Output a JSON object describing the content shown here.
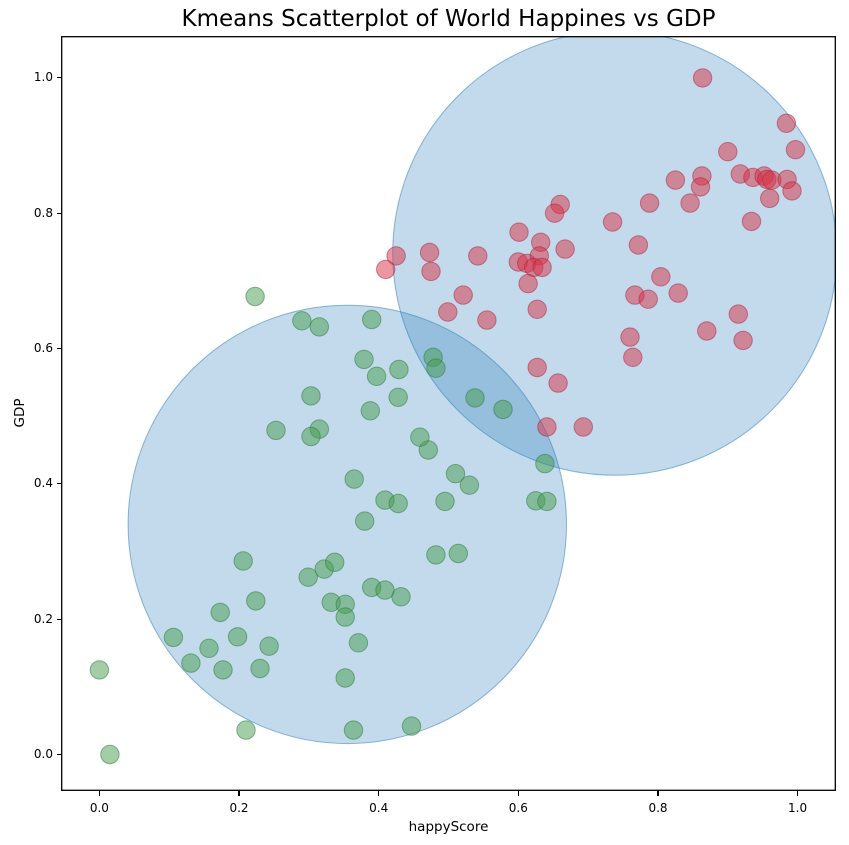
{
  "chart_data": {
    "type": "scatter",
    "title": "Kmeans Scatterplot of World Happines vs GDP",
    "xlabel": "happyScore",
    "ylabel": "GDP",
    "x_ticks": [
      "0.0",
      "0.2",
      "0.4",
      "0.6",
      "0.8",
      "1.0"
    ],
    "y_ticks": [
      "0.0",
      "0.2",
      "0.4",
      "0.6",
      "0.8",
      "1.0"
    ],
    "xlim": [
      -0.055,
      1.055
    ],
    "ylim": [
      -0.054,
      1.062
    ],
    "grid": false,
    "legend": "none",
    "colors": {
      "cluster_region_fill": "rgba(31,119,180,0.27)",
      "cluster_region_edge": "rgba(31,119,180,0.5)",
      "red_point_fill": "rgba(215,48,70,0.5)",
      "red_point_edge": "rgba(175,30,55,0.5)",
      "green_point_fill": "rgba(70,155,80,0.5)",
      "green_point_edge": "rgba(45,125,60,0.55)",
      "spine": "#000000"
    },
    "clusters": [
      {
        "name": "kmeans-region-high",
        "center": [
          0.738,
          0.741
        ],
        "radius": 0.318
      },
      {
        "name": "kmeans-region-low",
        "center": [
          0.355,
          0.34
        ],
        "radius": 0.314
      }
    ],
    "series": [
      {
        "name": "red-cluster",
        "points": [
          [
            0.864,
            1.0
          ],
          [
            0.984,
            0.933
          ],
          [
            0.997,
            0.894
          ],
          [
            0.9,
            0.891
          ],
          [
            0.918,
            0.858
          ],
          [
            0.936,
            0.853
          ],
          [
            0.952,
            0.855
          ],
          [
            0.956,
            0.85
          ],
          [
            0.963,
            0.849
          ],
          [
            0.985,
            0.85
          ],
          [
            0.992,
            0.833
          ],
          [
            0.96,
            0.822
          ],
          [
            0.863,
            0.855
          ],
          [
            0.861,
            0.839
          ],
          [
            0.846,
            0.815
          ],
          [
            0.825,
            0.849
          ],
          [
            0.788,
            0.815
          ],
          [
            0.934,
            0.788
          ],
          [
            0.735,
            0.787
          ],
          [
            0.772,
            0.753
          ],
          [
            0.66,
            0.813
          ],
          [
            0.652,
            0.8
          ],
          [
            0.601,
            0.772
          ],
          [
            0.632,
            0.757
          ],
          [
            0.542,
            0.737
          ],
          [
            0.667,
            0.747
          ],
          [
            0.63,
            0.737
          ],
          [
            0.6,
            0.728
          ],
          [
            0.612,
            0.726
          ],
          [
            0.622,
            0.72
          ],
          [
            0.634,
            0.72
          ],
          [
            0.473,
            0.742
          ],
          [
            0.425,
            0.737
          ],
          [
            0.41,
            0.717
          ],
          [
            0.475,
            0.714
          ],
          [
            0.614,
            0.696
          ],
          [
            0.804,
            0.706
          ],
          [
            0.767,
            0.679
          ],
          [
            0.786,
            0.673
          ],
          [
            0.829,
            0.682
          ],
          [
            0.521,
            0.679
          ],
          [
            0.499,
            0.654
          ],
          [
            0.555,
            0.642
          ],
          [
            0.627,
            0.658
          ],
          [
            0.915,
            0.651
          ],
          [
            0.87,
            0.626
          ],
          [
            0.922,
            0.612
          ],
          [
            0.76,
            0.617
          ],
          [
            0.764,
            0.587
          ],
          [
            0.627,
            0.572
          ],
          [
            0.657,
            0.549
          ],
          [
            0.641,
            0.484
          ],
          [
            0.693,
            0.484
          ]
        ]
      },
      {
        "name": "green-cluster",
        "points": [
          [
            0.015,
            0.0
          ],
          [
            0.0,
            0.125
          ],
          [
            0.21,
            0.036
          ],
          [
            0.364,
            0.036
          ],
          [
            0.447,
            0.042
          ],
          [
            0.352,
            0.113
          ],
          [
            0.177,
            0.125
          ],
          [
            0.23,
            0.127
          ],
          [
            0.131,
            0.135
          ],
          [
            0.157,
            0.157
          ],
          [
            0.243,
            0.16
          ],
          [
            0.371,
            0.165
          ],
          [
            0.106,
            0.173
          ],
          [
            0.198,
            0.174
          ],
          [
            0.173,
            0.21
          ],
          [
            0.224,
            0.227
          ],
          [
            0.332,
            0.225
          ],
          [
            0.352,
            0.222
          ],
          [
            0.352,
            0.203
          ],
          [
            0.39,
            0.247
          ],
          [
            0.409,
            0.243
          ],
          [
            0.432,
            0.233
          ],
          [
            0.299,
            0.262
          ],
          [
            0.322,
            0.274
          ],
          [
            0.337,
            0.284
          ],
          [
            0.206,
            0.286
          ],
          [
            0.482,
            0.295
          ],
          [
            0.514,
            0.297
          ],
          [
            0.38,
            0.345
          ],
          [
            0.409,
            0.376
          ],
          [
            0.428,
            0.371
          ],
          [
            0.365,
            0.407
          ],
          [
            0.495,
            0.374
          ],
          [
            0.625,
            0.375
          ],
          [
            0.641,
            0.374
          ],
          [
            0.638,
            0.43
          ],
          [
            0.51,
            0.415
          ],
          [
            0.53,
            0.398
          ],
          [
            0.471,
            0.45
          ],
          [
            0.459,
            0.469
          ],
          [
            0.253,
            0.479
          ],
          [
            0.315,
            0.481
          ],
          [
            0.303,
            0.47
          ],
          [
            0.303,
            0.53
          ],
          [
            0.428,
            0.528
          ],
          [
            0.388,
            0.508
          ],
          [
            0.379,
            0.584
          ],
          [
            0.397,
            0.559
          ],
          [
            0.429,
            0.569
          ],
          [
            0.478,
            0.587
          ],
          [
            0.482,
            0.571
          ],
          [
            0.538,
            0.527
          ],
          [
            0.578,
            0.51
          ],
          [
            0.29,
            0.641
          ],
          [
            0.315,
            0.632
          ],
          [
            0.39,
            0.643
          ],
          [
            0.223,
            0.677
          ]
        ]
      }
    ]
  }
}
